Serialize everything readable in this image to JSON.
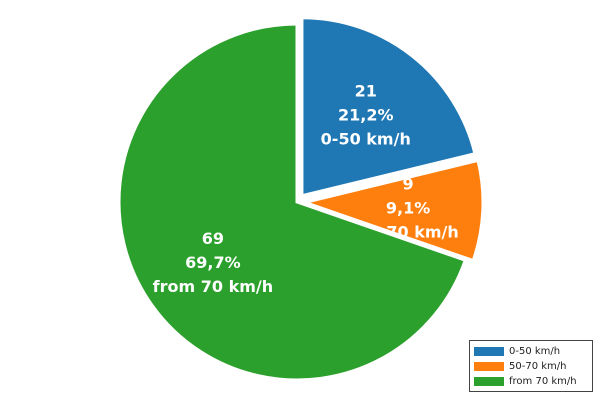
{
  "chart_data": {
    "type": "pie",
    "title": "",
    "legend_position": "bottom-right",
    "slices": [
      {
        "label": "0-50 km/h",
        "value": 21,
        "percent": "21,2%",
        "color": "#1f77b4",
        "exploded": true
      },
      {
        "label": "50-70 km/h",
        "value": 9,
        "percent": "9,1%",
        "color": "#ff7f0e",
        "exploded": true
      },
      {
        "label": "from 70 km/h",
        "value": 69,
        "percent": "69,7%",
        "color": "#2ca02c",
        "exploded": false
      }
    ]
  }
}
